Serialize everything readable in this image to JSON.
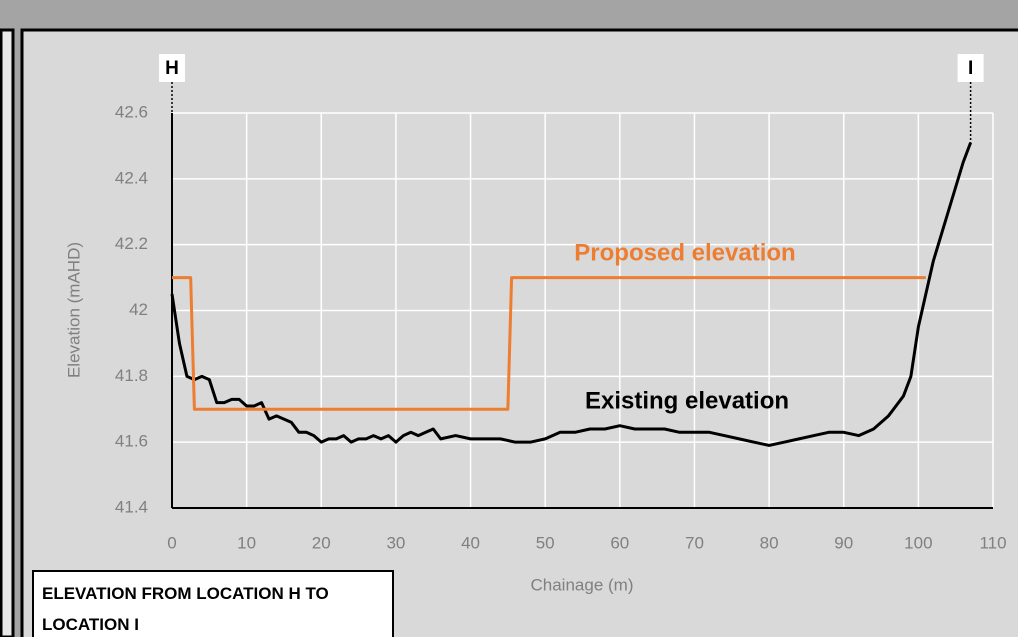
{
  "chart_data": {
    "type": "line",
    "title": "ELEVATION FROM LOCATION H TO LOCATION I",
    "x_label": "Chainage (m)",
    "y_label": "Elevation (mAHD)",
    "annotations": [
      "H",
      "I",
      "Proposed elevation",
      "Existing elevation"
    ],
    "xlim": [
      0,
      110
    ],
    "xticks": [
      0,
      10,
      20,
      30,
      40,
      50,
      60,
      70,
      80,
      90,
      100,
      110
    ],
    "ylim": [
      41.4,
      42.6
    ],
    "yticks": [
      41.4,
      41.6,
      41.8,
      42,
      42.2,
      42.4,
      42.6
    ],
    "grid": true,
    "series": [
      {
        "name": "Existing elevation",
        "color": "#000000",
        "x": [
          0,
          1,
          2,
          3,
          4,
          5,
          6,
          7,
          8,
          9,
          10,
          11,
          12,
          13,
          14,
          15,
          16,
          17,
          18,
          19,
          20,
          21,
          22,
          23,
          24,
          25,
          26,
          27,
          28,
          29,
          30,
          31,
          32,
          33,
          34,
          35,
          36,
          38,
          40,
          42,
          44,
          46,
          48,
          50,
          52,
          54,
          56,
          58,
          60,
          62,
          64,
          66,
          68,
          70,
          72,
          74,
          76,
          78,
          80,
          82,
          84,
          86,
          88,
          90,
          92,
          94,
          96,
          98,
          99,
          100,
          102,
          104,
          106,
          107
        ],
        "values": [
          42.05,
          41.9,
          41.8,
          41.79,
          41.8,
          41.79,
          41.72,
          41.72,
          41.73,
          41.73,
          41.71,
          41.71,
          41.72,
          41.67,
          41.68,
          41.67,
          41.66,
          41.63,
          41.63,
          41.62,
          41.6,
          41.61,
          41.61,
          41.62,
          41.6,
          41.61,
          41.61,
          41.62,
          41.61,
          41.62,
          41.6,
          41.62,
          41.63,
          41.62,
          41.63,
          41.64,
          41.61,
          41.62,
          41.61,
          41.61,
          41.61,
          41.6,
          41.6,
          41.61,
          41.63,
          41.63,
          41.64,
          41.64,
          41.65,
          41.64,
          41.64,
          41.64,
          41.63,
          41.63,
          41.63,
          41.62,
          41.61,
          41.6,
          41.59,
          41.6,
          41.61,
          41.62,
          41.63,
          41.63,
          41.62,
          41.64,
          41.68,
          41.74,
          41.8,
          41.95,
          42.15,
          42.3,
          42.45,
          42.51
        ]
      },
      {
        "name": "Proposed elevation",
        "color": "#ed7d31",
        "x": [
          0,
          2.5,
          3,
          45,
          45.5,
          101
        ],
        "values": [
          42.1,
          42.1,
          41.7,
          41.7,
          42.1,
          42.1
        ]
      }
    ]
  }
}
